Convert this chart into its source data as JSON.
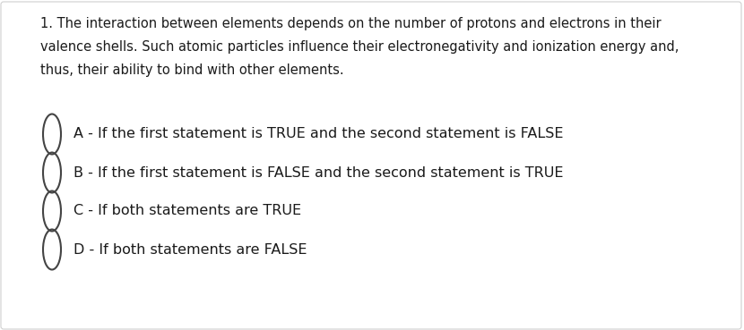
{
  "background_color": "#ffffff",
  "border_color": "#d0d0d0",
  "question_text_line1": "1. The interaction between elements depends on the number of protons and electrons in their",
  "question_text_line2": "valence shells. Such atomic particles influence their electronegativity and ionization energy and,",
  "question_text_line3": "thus, their ability to bind with other elements.",
  "options": [
    "A - If the first statement is TRUE and the second statement is FALSE",
    "B - If the first statement is FALSE and the second statement is TRUE",
    "C - If both statements are TRUE",
    "D - If both statements are FALSE"
  ],
  "text_color": "#1a1a1a",
  "circle_color": "#444444",
  "font_size_question": 10.5,
  "font_size_options": 11.5
}
